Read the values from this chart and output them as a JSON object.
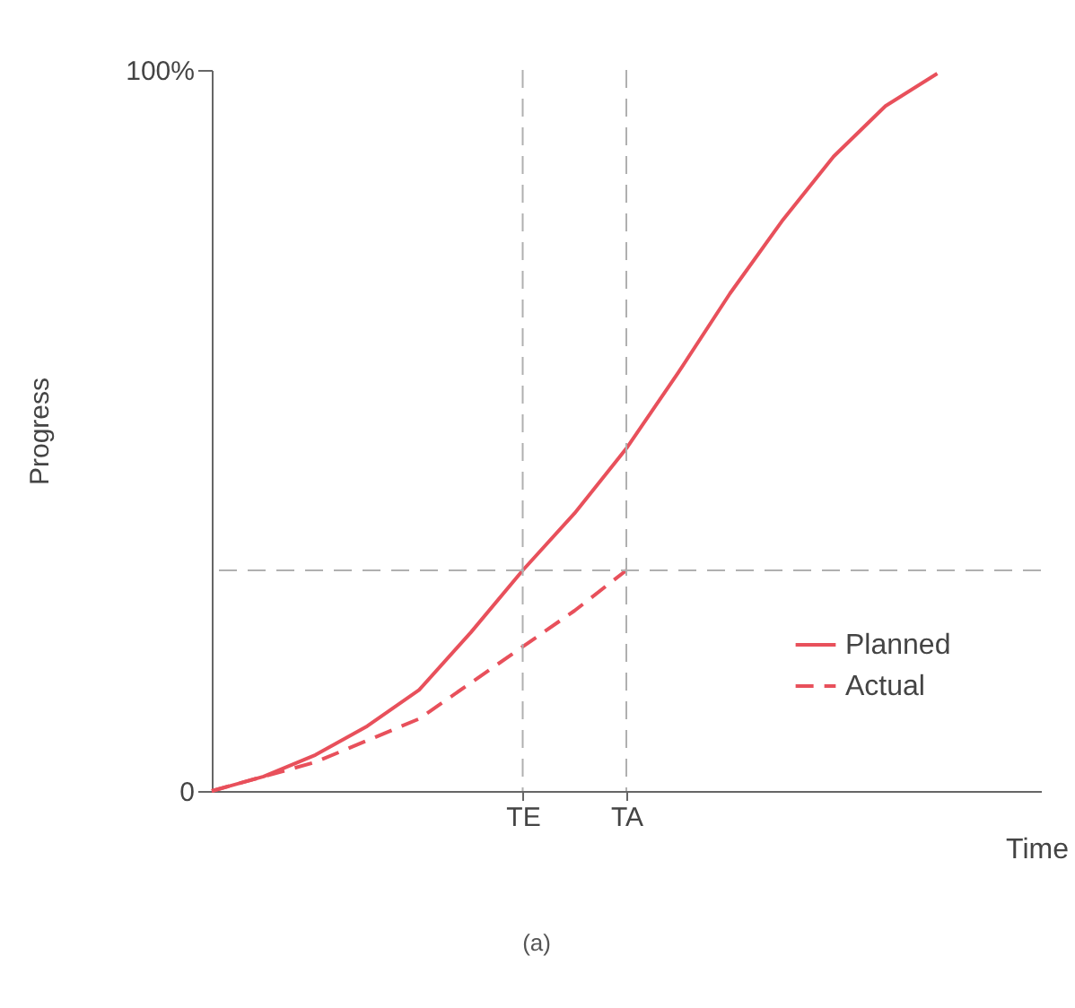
{
  "chart_data": {
    "type": "line",
    "xlabel": "Time",
    "ylabel": "Progress",
    "annotations": [
      "(a)"
    ],
    "categories": [
      null,
      null,
      null,
      null,
      null,
      null,
      "TE",
      null,
      "TA",
      null,
      null,
      null,
      null,
      null,
      null,
      null,
      null
    ],
    "ylim": [
      0,
      100
    ],
    "yticks": [
      0,
      {
        "value": 100,
        "label": "100%"
      }
    ],
    "series": [
      {
        "name": "Planned",
        "color": "#e8505b",
        "line_style": "solid",
        "values": [
          0,
          2,
          5,
          9,
          14,
          22,
          30.6,
          38.5,
          47.5,
          58,
          69,
          79,
          88,
          95,
          99.5,
          null,
          null
        ]
      },
      {
        "name": "Actual",
        "color": "#e8505b",
        "line_style": "dashed",
        "values": [
          0,
          2,
          4,
          7,
          10,
          15,
          20,
          25,
          30.6,
          null,
          null,
          null,
          null,
          null,
          null,
          null,
          null
        ]
      }
    ],
    "ref_lines": [
      {
        "axis": "y",
        "value": 30.6,
        "color": "#b0b0b0",
        "line_style": "dashed"
      },
      {
        "axis": "x",
        "value": "TE",
        "color": "#b0b0b0",
        "line_style": "dashed"
      },
      {
        "axis": "x",
        "value": "TA",
        "color": "#b0b0b0",
        "line_style": "dashed"
      }
    ],
    "grid": false,
    "legend": "bottom right",
    "marker": "none"
  }
}
